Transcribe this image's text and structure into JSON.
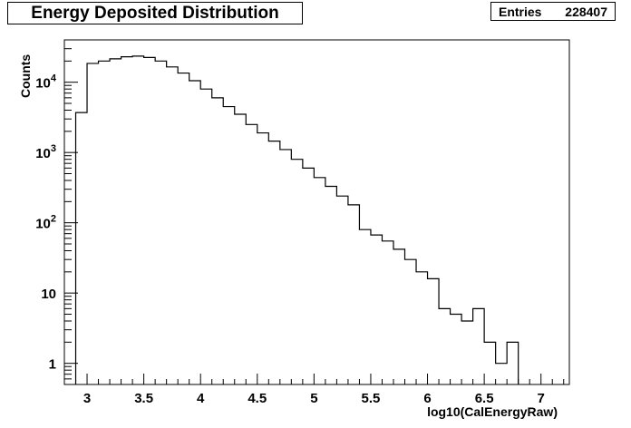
{
  "chart_data": {
    "type": "histogram",
    "title": "Energy Deposited Distribution",
    "stats": {
      "label": "Entries",
      "value": "228407"
    },
    "xlabel": "log10(CalEnergyRaw)",
    "ylabel": "Counts",
    "xlim": [
      2.8,
      7.25
    ],
    "ylim": [
      0.5,
      40000
    ],
    "yscale": "log",
    "bin_width": 0.1,
    "x_ticks": [
      "3",
      "3.5",
      "4",
      "4.5",
      "5",
      "5.5",
      "6",
      "6.5",
      "7"
    ],
    "y_ticks": [
      {
        "value": 1,
        "base": "1",
        "exp": ""
      },
      {
        "value": 10,
        "base": "10",
        "exp": ""
      },
      {
        "value": 100,
        "base": "10",
        "exp": "2"
      },
      {
        "value": 1000,
        "base": "10",
        "exp": "3"
      },
      {
        "value": 10000,
        "base": "10",
        "exp": "4"
      }
    ],
    "bins": [
      {
        "x": 2.95,
        "count": 3700
      },
      {
        "x": 3.05,
        "count": 18500
      },
      {
        "x": 3.15,
        "count": 20000
      },
      {
        "x": 3.25,
        "count": 21500
      },
      {
        "x": 3.35,
        "count": 23000
      },
      {
        "x": 3.45,
        "count": 23500
      },
      {
        "x": 3.55,
        "count": 22500
      },
      {
        "x": 3.65,
        "count": 20000
      },
      {
        "x": 3.75,
        "count": 16500
      },
      {
        "x": 3.85,
        "count": 13500
      },
      {
        "x": 3.95,
        "count": 10500
      },
      {
        "x": 4.05,
        "count": 8000
      },
      {
        "x": 4.15,
        "count": 6000
      },
      {
        "x": 4.25,
        "count": 4500
      },
      {
        "x": 4.35,
        "count": 3500
      },
      {
        "x": 4.45,
        "count": 2500
      },
      {
        "x": 4.55,
        "count": 1900
      },
      {
        "x": 4.65,
        "count": 1450
      },
      {
        "x": 4.75,
        "count": 1100
      },
      {
        "x": 4.85,
        "count": 800
      },
      {
        "x": 4.95,
        "count": 600
      },
      {
        "x": 5.05,
        "count": 440
      },
      {
        "x": 5.15,
        "count": 330
      },
      {
        "x": 5.25,
        "count": 240
      },
      {
        "x": 5.35,
        "count": 180
      },
      {
        "x": 5.45,
        "count": 80
      },
      {
        "x": 5.55,
        "count": 67
      },
      {
        "x": 5.65,
        "count": 55
      },
      {
        "x": 5.75,
        "count": 42
      },
      {
        "x": 5.85,
        "count": 30
      },
      {
        "x": 5.95,
        "count": 20
      },
      {
        "x": 6.05,
        "count": 16
      },
      {
        "x": 6.15,
        "count": 6
      },
      {
        "x": 6.25,
        "count": 5
      },
      {
        "x": 6.35,
        "count": 4
      },
      {
        "x": 6.45,
        "count": 6
      },
      {
        "x": 6.55,
        "count": 2
      },
      {
        "x": 6.65,
        "count": 1
      },
      {
        "x": 6.75,
        "count": 2
      }
    ]
  }
}
